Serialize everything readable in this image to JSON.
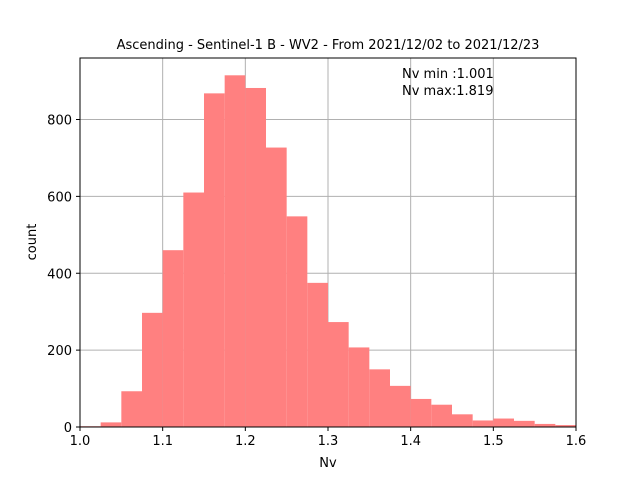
{
  "chart_data": {
    "type": "bar",
    "title": "Ascending - Sentinel-1 B - WV2 - From 2021/12/02 to 2021/12/23",
    "xlabel": "Nv",
    "ylabel": "count",
    "xlim": [
      1.0,
      1.6
    ],
    "ylim": [
      0,
      960
    ],
    "grid": true,
    "bar_color": "#ff8080",
    "bin_edges": [
      1.0,
      1.025,
      1.05,
      1.075,
      1.1,
      1.125,
      1.15,
      1.175,
      1.2,
      1.225,
      1.25,
      1.275,
      1.3,
      1.325,
      1.35,
      1.375,
      1.4,
      1.425,
      1.45,
      1.475,
      1.5,
      1.525,
      1.55,
      1.575,
      1.6
    ],
    "values": [
      2,
      12,
      93,
      297,
      460,
      610,
      868,
      915,
      882,
      727,
      548,
      375,
      273,
      207,
      150,
      107,
      73,
      58,
      33,
      17,
      22,
      16,
      8,
      5
    ],
    "x_ticks": [
      1.0,
      1.1,
      1.2,
      1.3,
      1.4,
      1.5,
      1.6
    ],
    "x_tick_labels": [
      "1.0",
      "1.1",
      "1.2",
      "1.3",
      "1.4",
      "1.5",
      "1.6"
    ],
    "y_ticks": [
      0,
      200,
      400,
      600,
      800
    ],
    "y_tick_labels": [
      "0",
      "200",
      "400",
      "600",
      "800"
    ],
    "annotations": [
      "Nv min :1.001",
      "Nv max:1.819"
    ]
  }
}
